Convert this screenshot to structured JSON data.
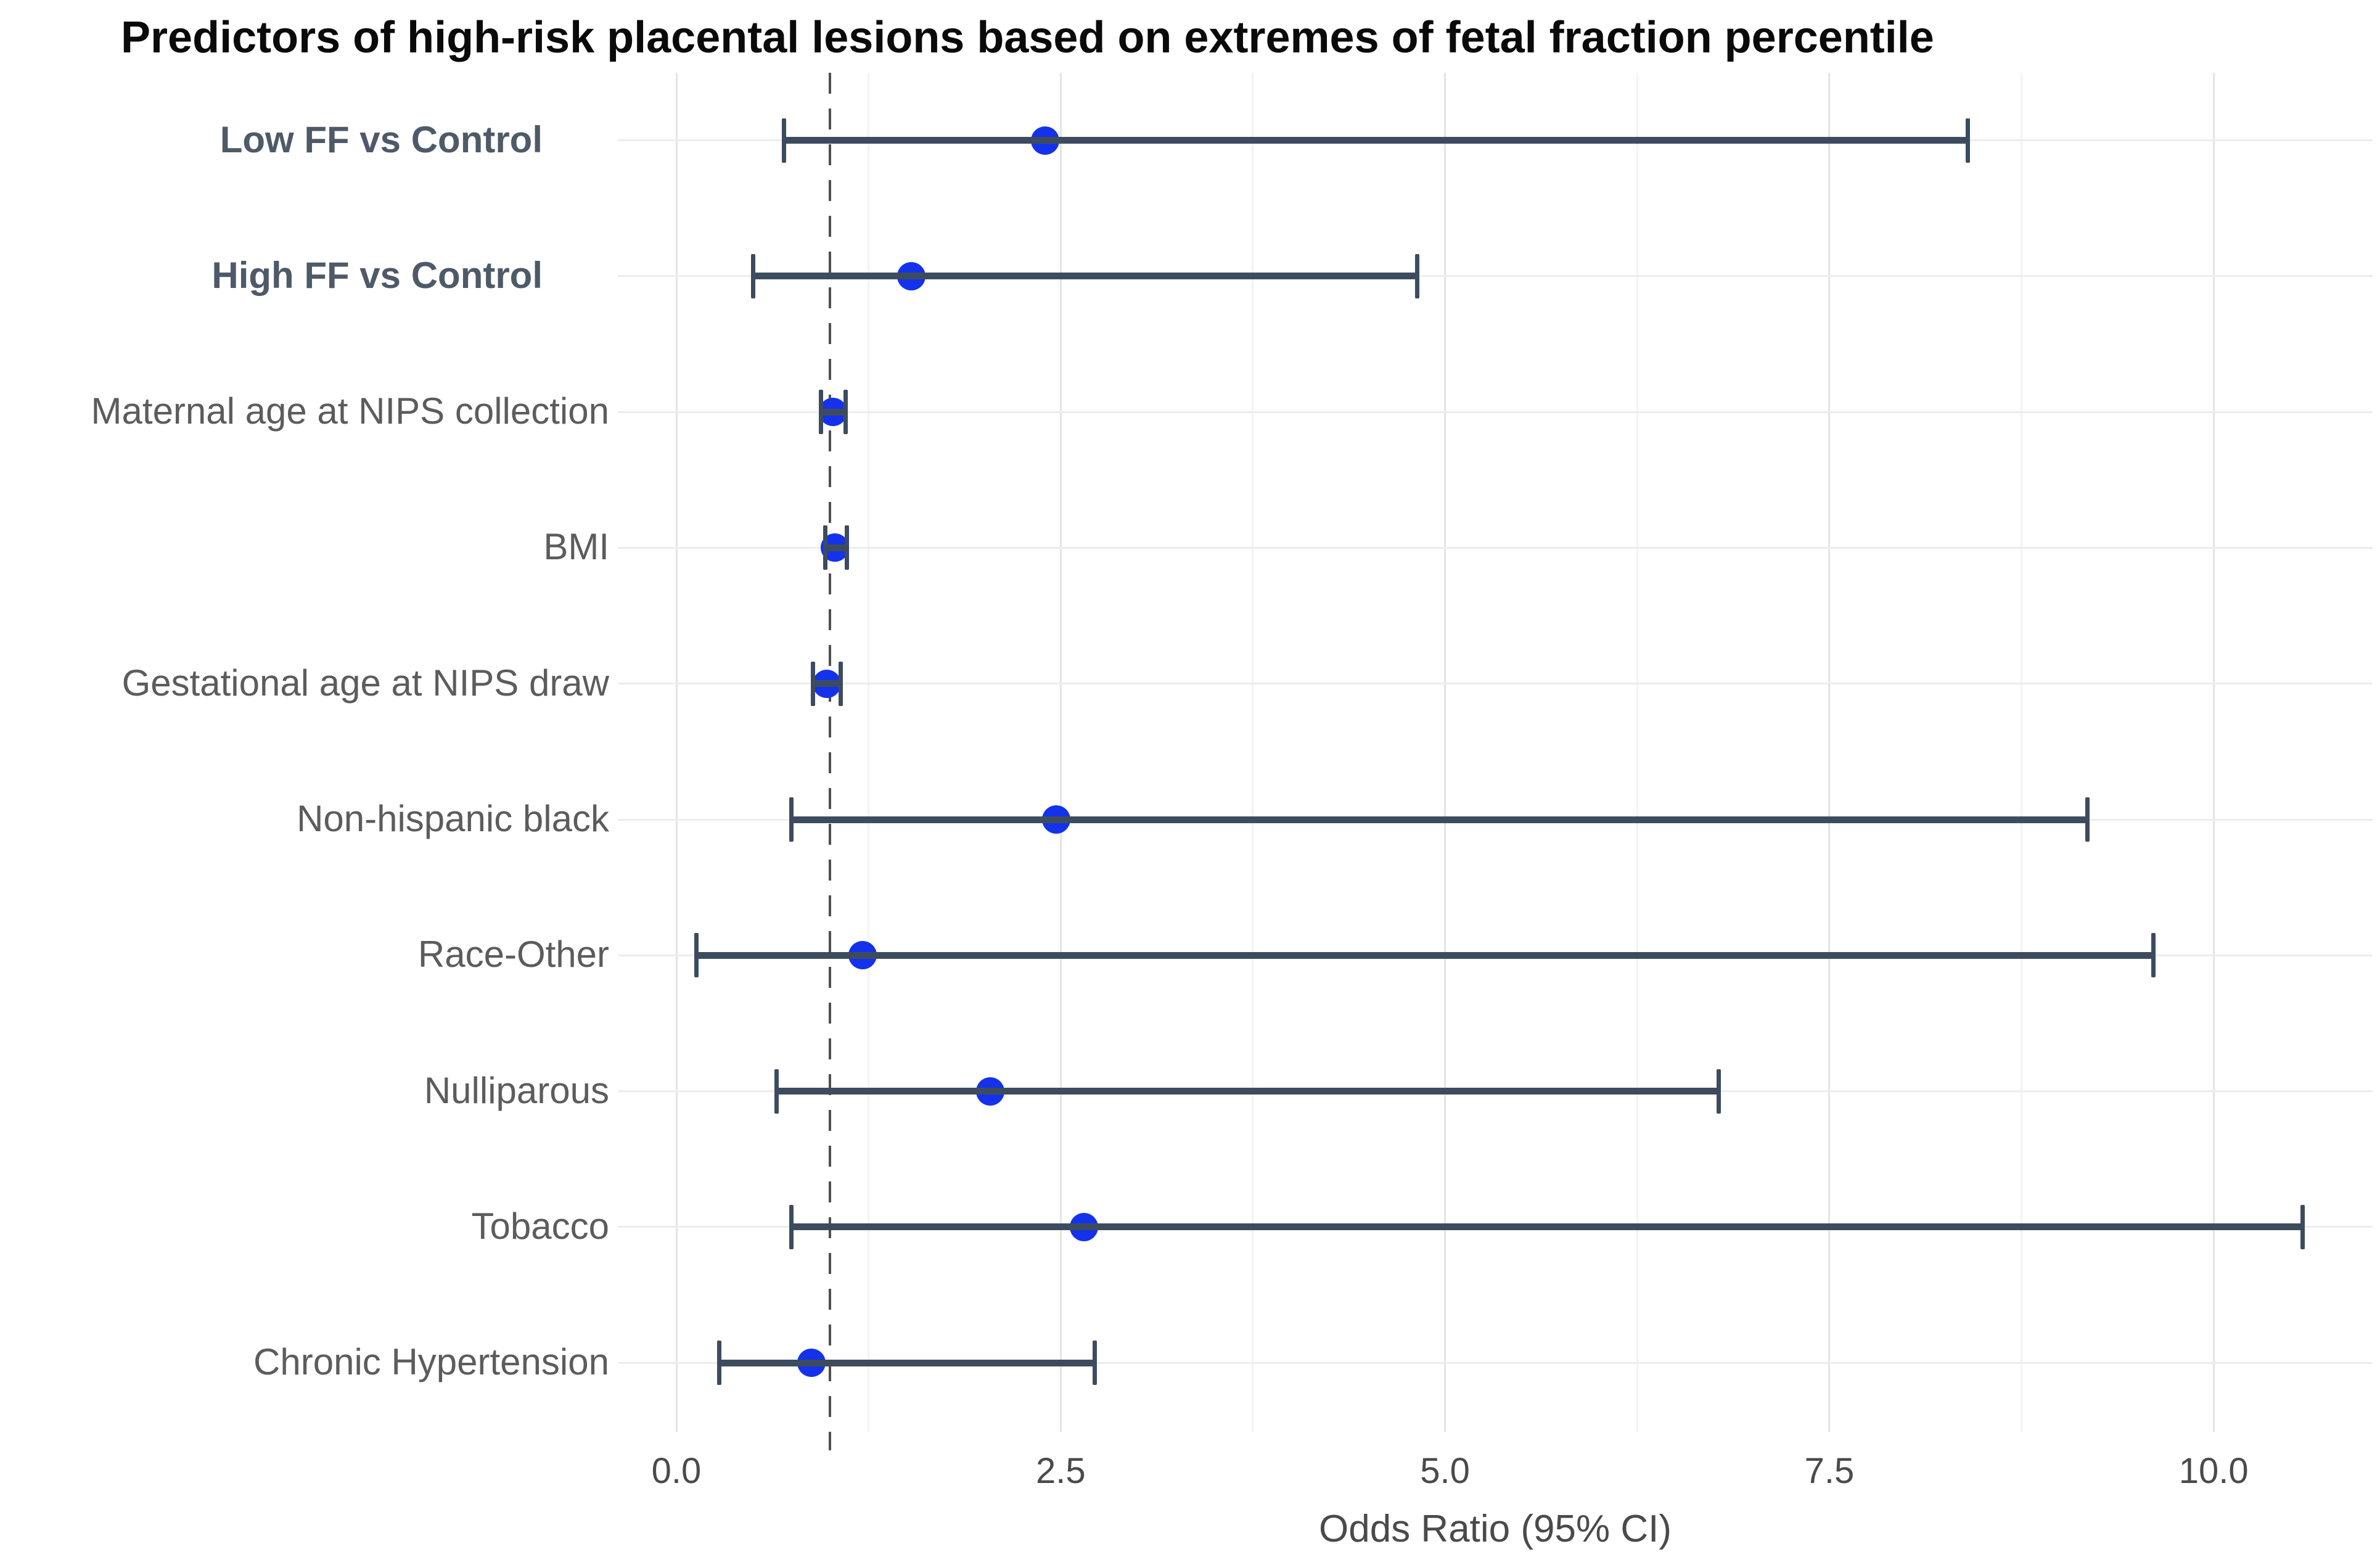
{
  "chart_data": {
    "type": "scatter",
    "subtype": "forest-plot-odds-ratios",
    "title": "Predictors of high-risk placental lesions based on extremes of fetal fraction percentile",
    "xlabel": "Odds Ratio (95% CI)",
    "ylabel": "",
    "xlim": [
      -0.38,
      11.05
    ],
    "grid": "on",
    "legend": "none",
    "reference_line_x": 1.0,
    "x_ticks": [
      {
        "value": 0.0,
        "label": "0.0"
      },
      {
        "value": 2.5,
        "label": "2.5"
      },
      {
        "value": 5.0,
        "label": "5.0"
      },
      {
        "value": 7.5,
        "label": "7.5"
      },
      {
        "value": 10.0,
        "label": "10.0"
      }
    ],
    "x_minor_gridlines": [
      1.25,
      3.75,
      6.25,
      8.75
    ],
    "rows": [
      {
        "label": "Low FF vs Control",
        "bold": true,
        "or": 2.4,
        "ci_low": 0.7,
        "ci_high": 8.4
      },
      {
        "label": "High FF vs Control",
        "bold": true,
        "or": 1.53,
        "ci_low": 0.5,
        "ci_high": 4.82
      },
      {
        "label": "Maternal age at NIPS collection",
        "bold": false,
        "or": 1.02,
        "ci_low": 0.94,
        "ci_high": 1.1
      },
      {
        "label": "BMI",
        "bold": false,
        "or": 1.03,
        "ci_low": 0.97,
        "ci_high": 1.11
      },
      {
        "label": "Gestational age at NIPS draw",
        "bold": false,
        "or": 0.98,
        "ci_low": 0.89,
        "ci_high": 1.07
      },
      {
        "label": "Non-hispanic black",
        "bold": false,
        "or": 2.47,
        "ci_low": 0.75,
        "ci_high": 9.18
      },
      {
        "label": "Race-Other",
        "bold": false,
        "or": 1.21,
        "ci_low": 0.13,
        "ci_high": 9.61
      },
      {
        "label": "Nulliparous",
        "bold": false,
        "or": 2.04,
        "ci_low": 0.65,
        "ci_high": 6.78
      },
      {
        "label": "Tobacco",
        "bold": false,
        "or": 2.65,
        "ci_low": 0.75,
        "ci_high": 10.58
      },
      {
        "label": "Chronic Hypertension",
        "bold": false,
        "or": 0.88,
        "ci_low": 0.28,
        "ci_high": 2.72
      }
    ]
  },
  "colors": {
    "background": "#FFFFFF",
    "point": "#1432EB",
    "errorbar": "#3C4C5E",
    "reference_line": "#4F4F4F",
    "grid_major": "#E4E4E4",
    "grid_minor": "#F3F3F3",
    "row_gridline": "#EDEDED",
    "axis_text": "#4A4A4A",
    "label_text": "#5C5C5C",
    "label_bold_text": "#4E5A68",
    "title_text": "#0A0A0A"
  }
}
